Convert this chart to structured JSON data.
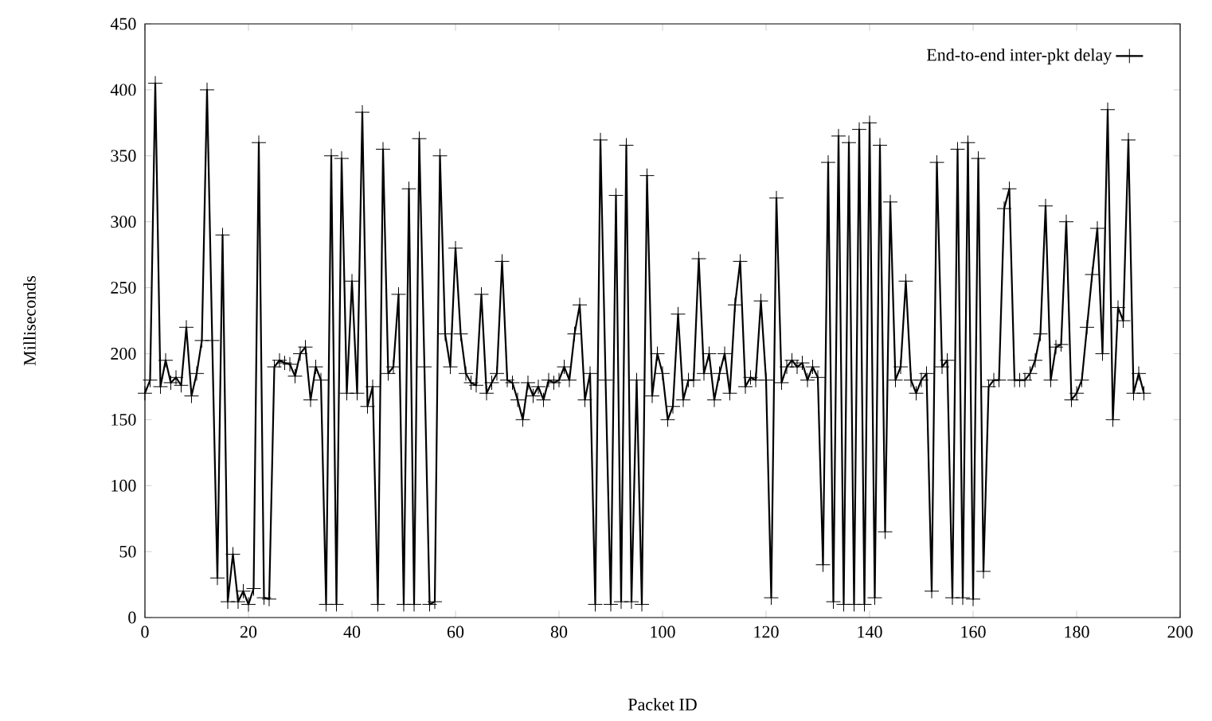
{
  "chart_data": {
    "type": "line",
    "xlabel": "Packet ID",
    "ylabel": "Milliseconds",
    "xlim": [
      0,
      200
    ],
    "ylim": [
      0,
      450
    ],
    "xticks": [
      0,
      20,
      40,
      60,
      80,
      100,
      120,
      140,
      160,
      180,
      200
    ],
    "yticks": [
      0,
      50,
      100,
      150,
      200,
      250,
      300,
      350,
      400,
      450
    ],
    "grid": false,
    "legend": "top right",
    "marker": "cross",
    "line_style": "solid",
    "x": [
      0,
      1,
      2,
      3,
      4,
      5,
      6,
      7,
      8,
      9,
      10,
      11,
      12,
      13,
      14,
      15,
      16,
      17,
      18,
      19,
      20,
      21,
      22,
      23,
      24,
      25,
      26,
      27,
      28,
      29,
      30,
      31,
      32,
      33,
      34,
      35,
      36,
      37,
      38,
      39,
      40,
      41,
      42,
      43,
      44,
      45,
      46,
      47,
      48,
      49,
      50,
      51,
      52,
      53,
      54,
      55,
      56,
      57,
      58,
      59,
      60,
      61,
      62,
      63,
      64,
      65,
      66,
      67,
      68,
      69,
      70,
      71,
      72,
      73,
      74,
      75,
      76,
      77,
      78,
      79,
      80,
      81,
      82,
      83,
      84,
      85,
      86,
      87,
      88,
      89,
      90,
      91,
      92,
      93,
      94,
      95,
      96,
      97,
      98,
      99,
      100,
      101,
      102,
      103,
      104,
      105,
      106,
      107,
      108,
      109,
      110,
      111,
      112,
      113,
      114,
      115,
      116,
      117,
      118,
      119,
      120,
      121,
      122,
      123,
      124,
      125,
      126,
      127,
      128,
      129,
      130,
      131,
      132,
      133,
      134,
      135,
      136,
      137,
      138,
      139,
      140,
      141,
      142,
      143,
      144,
      145,
      146,
      147,
      148,
      149,
      150,
      151,
      152,
      153,
      154,
      155,
      156,
      157,
      158,
      159,
      160,
      161,
      162,
      163,
      164,
      165,
      166,
      167,
      168,
      169,
      170,
      171,
      172,
      173,
      174,
      175,
      176,
      177,
      178,
      179,
      180,
      181,
      182,
      183,
      184,
      185,
      186,
      187,
      188,
      189,
      190,
      191,
      192,
      193
    ],
    "series": [
      {
        "name": "End-to-end inter-pkt delay",
        "color": "#000000",
        "values": [
          170,
          180,
          405,
          175,
          195,
          178,
          182,
          176,
          220,
          168,
          185,
          210,
          400,
          210,
          30,
          290,
          12,
          48,
          12,
          20,
          10,
          22,
          360,
          15,
          14,
          190,
          195,
          193,
          192,
          183,
          200,
          205,
          165,
          190,
          180,
          10,
          350,
          10,
          348,
          170,
          255,
          170,
          383,
          160,
          175,
          10,
          355,
          185,
          190,
          245,
          10,
          325,
          10,
          363,
          190,
          10,
          12,
          350,
          215,
          190,
          280,
          215,
          185,
          178,
          176,
          245,
          170,
          178,
          185,
          270,
          180,
          178,
          165,
          150,
          178,
          168,
          175,
          165,
          180,
          178,
          180,
          190,
          180,
          215,
          237,
          165,
          185,
          10,
          362,
          180,
          10,
          320,
          12,
          358,
          12,
          180,
          10,
          335,
          168,
          200,
          185,
          150,
          160,
          230,
          165,
          180,
          180,
          272,
          185,
          200,
          165,
          185,
          200,
          170,
          237,
          270,
          175,
          182,
          180,
          240,
          180,
          15,
          318,
          178,
          190,
          195,
          190,
          193,
          180,
          190,
          182,
          40,
          345,
          12,
          365,
          10,
          360,
          10,
          370,
          10,
          375,
          15,
          358,
          65,
          315,
          180,
          190,
          255,
          180,
          170,
          180,
          185,
          20,
          345,
          190,
          195,
          15,
          355,
          15,
          360,
          14,
          348,
          35,
          175,
          180,
          180,
          310,
          325,
          180,
          180,
          180,
          185,
          195,
          215,
          312,
          180,
          205,
          207,
          300,
          165,
          170,
          180,
          220,
          260,
          295,
          200,
          385,
          150,
          235,
          225,
          362,
          170,
          185,
          170
        ]
      }
    ]
  }
}
